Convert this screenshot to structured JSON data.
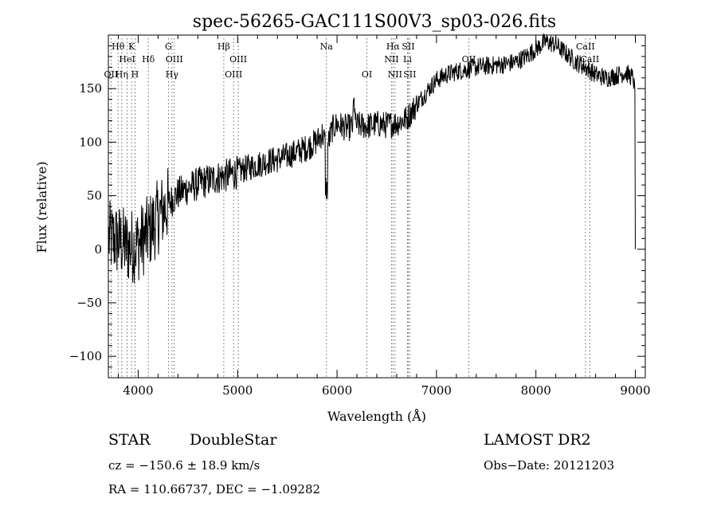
{
  "chart_data": {
    "type": "line",
    "title": "spec-56265-GAC111S00V3_sp03-026.fits",
    "xlabel": "Wavelength (Å)",
    "ylabel": "Flux (relative)",
    "xlim": [
      3700,
      9100
    ],
    "ylim": [
      -120,
      200
    ],
    "x_ticks": [
      4000,
      5000,
      6000,
      7000,
      8000,
      9000
    ],
    "x_tick_labels": [
      "4000",
      "5000",
      "6000",
      "7000",
      "8000",
      "9000"
    ],
    "y_ticks": [
      -100,
      -50,
      0,
      50,
      100,
      150
    ],
    "y_tick_labels": [
      "−100",
      "−50",
      "0",
      "50",
      "100",
      "150"
    ],
    "grid": false,
    "series": [
      {
        "color": "#000000",
        "points": [
          [
            3700,
            10
          ],
          [
            3800,
            8
          ],
          [
            3900,
            2
          ],
          [
            4000,
            5
          ],
          [
            4100,
            15
          ],
          [
            4200,
            30
          ],
          [
            4300,
            42
          ],
          [
            4400,
            52
          ],
          [
            4500,
            57
          ],
          [
            4600,
            61
          ],
          [
            4700,
            64
          ],
          [
            4800,
            67
          ],
          [
            4900,
            69
          ],
          [
            5000,
            72
          ],
          [
            5100,
            76
          ],
          [
            5200,
            79
          ],
          [
            5300,
            82
          ],
          [
            5400,
            84
          ],
          [
            5500,
            87
          ],
          [
            5600,
            91
          ],
          [
            5700,
            95
          ],
          [
            5800,
            101
          ],
          [
            5850,
            108
          ],
          [
            5900,
            95
          ],
          [
            5950,
            112
          ],
          [
            6000,
            117
          ],
          [
            6100,
            113
          ],
          [
            6200,
            116
          ],
          [
            6300,
            115
          ],
          [
            6400,
            117
          ],
          [
            6500,
            116
          ],
          [
            6600,
            118
          ],
          [
            6700,
            122
          ],
          [
            6800,
            135
          ],
          [
            6900,
            147
          ],
          [
            7000,
            158
          ],
          [
            7100,
            163
          ],
          [
            7200,
            166
          ],
          [
            7300,
            168
          ],
          [
            7400,
            170
          ],
          [
            7500,
            171
          ],
          [
            7600,
            172
          ],
          [
            7700,
            173
          ],
          [
            7800,
            175
          ],
          [
            7900,
            180
          ],
          [
            8000,
            187
          ],
          [
            8100,
            194
          ],
          [
            8200,
            191
          ],
          [
            8300,
            183
          ],
          [
            8400,
            175
          ],
          [
            8500,
            170
          ],
          [
            8600,
            163
          ],
          [
            8700,
            160
          ],
          [
            8800,
            162
          ],
          [
            8900,
            165
          ],
          [
            8980,
            160
          ],
          [
            8990,
            150
          ],
          [
            9000,
            0
          ]
        ]
      }
    ],
    "spectral_lines": [
      {
        "label": "Hθ",
        "wavelength": 3798,
        "row": 1
      },
      {
        "label": "K",
        "wavelength": 3934,
        "row": 1
      },
      {
        "label": "G",
        "wavelength": 4304,
        "row": 1
      },
      {
        "label": "Hβ",
        "wavelength": 4861,
        "row": 1
      },
      {
        "label": "Na",
        "wavelength": 5893,
        "row": 1
      },
      {
        "label": "Hα",
        "wavelength": 6563,
        "row": 1
      },
      {
        "label": "SII",
        "wavelength": 6716,
        "row": 1
      },
      {
        "label": "CaII",
        "wavelength": 8498,
        "row": 1
      },
      {
        "label": "HeI",
        "wavelength": 3889,
        "row": 2
      },
      {
        "label": "Hδ",
        "wavelength": 4102,
        "row": 2
      },
      {
        "label": "OIII",
        "wavelength": 4363,
        "row": 2
      },
      {
        "label": "OIII",
        "wavelength": 5007,
        "row": 2
      },
      {
        "label": "NII",
        "wavelength": 6548,
        "row": 2
      },
      {
        "label": "Li",
        "wavelength": 6708,
        "row": 2
      },
      {
        "label": "OII",
        "wavelength": 7325,
        "row": 2
      },
      {
        "label": "CaII",
        "wavelength": 8542,
        "row": 2
      },
      {
        "label": "OII",
        "wavelength": 3727,
        "row": 3
      },
      {
        "label": "Hη",
        "wavelength": 3835,
        "row": 3
      },
      {
        "label": "H",
        "wavelength": 3968,
        "row": 3
      },
      {
        "label": "Hγ",
        "wavelength": 4340,
        "row": 3
      },
      {
        "label": "OIII",
        "wavelength": 4959,
        "row": 3
      },
      {
        "label": "OI",
        "wavelength": 6300,
        "row": 3
      },
      {
        "label": "NII",
        "wavelength": 6583,
        "row": 3
      },
      {
        "label": "SII",
        "wavelength": 6731,
        "row": 3
      }
    ]
  },
  "info": {
    "class": "STAR",
    "subclass": "DoubleStar",
    "survey": "LAMOST DR2",
    "cz": "cz = −150.6 ± 18.9 km/s",
    "obs_date": "Obs−Date: 20121203",
    "radec": "RA = 110.66737, DEC =  −1.09282"
  }
}
